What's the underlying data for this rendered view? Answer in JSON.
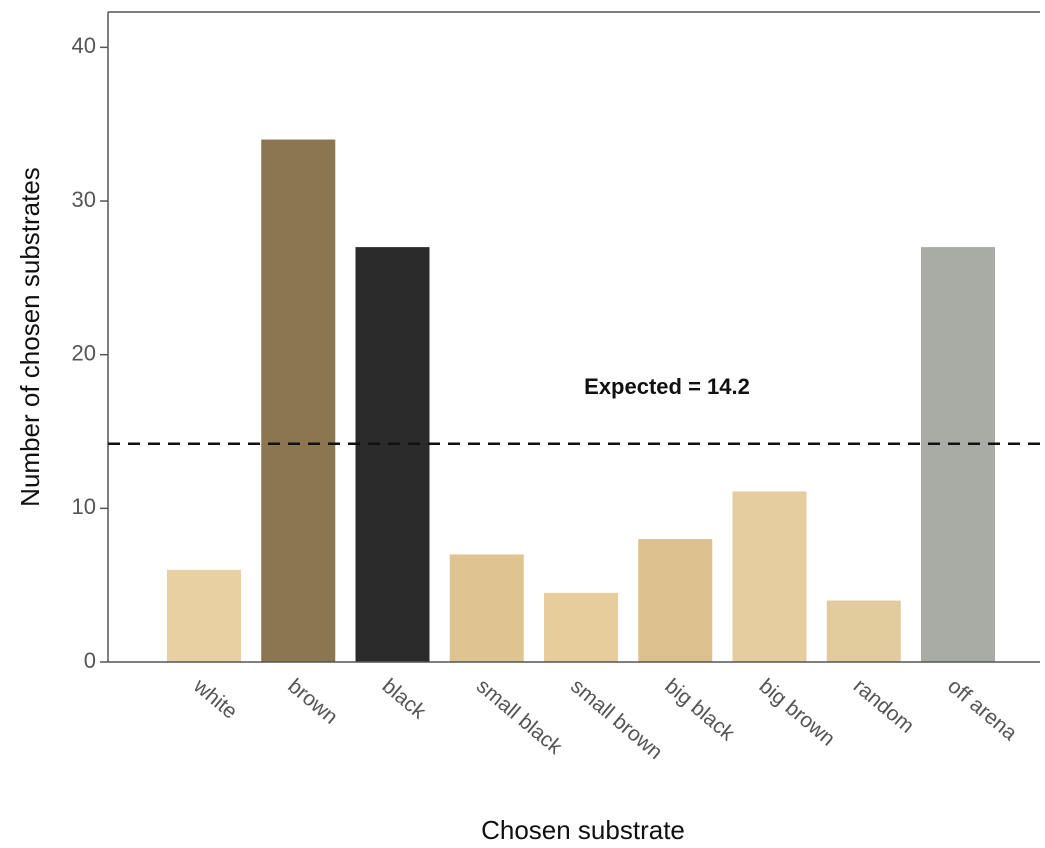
{
  "chart_data": {
    "type": "bar",
    "x_label": "Chosen substrate",
    "y_label": "Number of chosen substrates",
    "categories": [
      "white",
      "brown",
      "black",
      "small black",
      "small brown",
      "big black",
      "big brown",
      "random",
      "off arena"
    ],
    "values": [
      6,
      34,
      27,
      7,
      4.5,
      8,
      11.1,
      4,
      27
    ],
    "colors": [
      "#e9d0a2",
      "#8b7650",
      "#2b2b2b",
      "#dfc391",
      "#e7cd9c",
      "#dcc08d",
      "#e5cd9f",
      "#e1ca9b",
      "#a9aba5"
    ],
    "ylim": [
      0,
      42.3
    ],
    "yticks": [
      0,
      10,
      20,
      30,
      40
    ],
    "reference_line": {
      "value": 14.2,
      "label": "Expected = 14.2"
    }
  }
}
